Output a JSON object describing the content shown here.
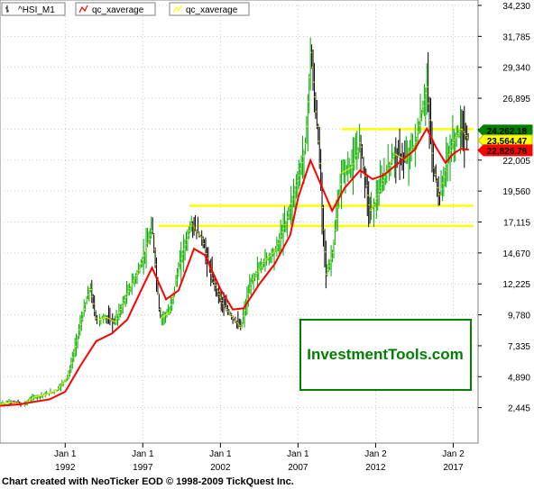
{
  "legend": [
    {
      "label": "^HSI_M1",
      "icon": "bar-series-icon",
      "color": "#000000"
    },
    {
      "label": "qc_xaverage",
      "icon": "line-series-icon",
      "color": "#ff0000"
    },
    {
      "label": "qc_xaverage",
      "icon": "line-series-icon",
      "color": "#ffff00"
    }
  ],
  "footer": "Chart created with NeoTicker EOD © 1998-2009 TickQuest Inc.",
  "watermark": "InvestmentTools.com",
  "colors": {
    "background": "#ffffff",
    "price_bars": "#000000",
    "price_bars_alt": "#ffff00",
    "price_bars_green": "#00aa00",
    "average_line": "#ff0000",
    "level_lines": "#ffff00",
    "watermark_border": "#008000",
    "watermark_text": "#008000"
  },
  "chart_data": {
    "type": "line",
    "title": "",
    "xlabel": "",
    "ylabel": "",
    "x_tick_labels": [
      {
        "month": "Jan 1",
        "year": "1992"
      },
      {
        "month": "Jan 1",
        "year": "1997"
      },
      {
        "month": "Jan 1",
        "year": "2002"
      },
      {
        "month": "Jan 1",
        "year": "2007"
      },
      {
        "month": "Jan 2",
        "year": "2012"
      },
      {
        "month": "Jan 2",
        "year": "2017"
      }
    ],
    "x_tick_dates": [
      1992.0,
      1997.0,
      2002.0,
      2007.0,
      2012.0,
      2017.0
    ],
    "xlim": [
      1987.8,
      2018.6
    ],
    "y_ticks": [
      "2,445",
      "4,890",
      "7,335",
      "9,780",
      "12,225",
      "14,670",
      "17,115",
      "19,560",
      "22,005",
      "24,450",
      "26,895",
      "29,340",
      "31,785",
      "34,230"
    ],
    "ylim": [
      0,
      34230
    ],
    "grid": true,
    "price_labels": [
      {
        "value": 24262.18,
        "text": "24,262.18",
        "color": "#008000"
      },
      {
        "value": 23564.47,
        "text": "23,564.47",
        "color": "#ffff00"
      },
      {
        "value": 22826.76,
        "text": "22,826.76",
        "color": "#ff0000"
      }
    ],
    "series": [
      {
        "name": "^HSI_M1",
        "x": [
          1987.8,
          1988.5,
          1989.3,
          1990.0,
          1990.8,
          1991.5,
          1992.2,
          1993.0,
          1993.6,
          1994.0,
          1994.6,
          1995.2,
          1996.0,
          1996.8,
          1997.6,
          1998.1,
          1998.7,
          1999.3,
          2000.1,
          2000.8,
          2001.5,
          2002.2,
          2002.8,
          2003.3,
          2004.0,
          2004.8,
          2005.6,
          2006.3,
          2007.0,
          2007.5,
          2007.8,
          2008.3,
          2008.8,
          2009.2,
          2009.8,
          2010.5,
          2011.0,
          2011.6,
          2011.9,
          2012.5,
          2013.2,
          2013.9,
          2014.6,
          2015.3,
          2015.7,
          2016.1,
          2016.6,
          2017.0,
          2017.5,
          2018.0
        ],
        "values": [
          2700,
          2900,
          2700,
          3300,
          3500,
          3900,
          5000,
          9200,
          12000,
          9300,
          9600,
          9200,
          11500,
          13500,
          16600,
          9500,
          10000,
          13500,
          17000,
          15800,
          12500,
          10500,
          9500,
          8800,
          12500,
          14000,
          15000,
          17500,
          20500,
          23500,
          30500,
          23500,
          13000,
          14500,
          21000,
          21500,
          23500,
          18000,
          18500,
          20500,
          22500,
          22000,
          23500,
          27800,
          21500,
          19000,
          22000,
          23500,
          24500,
          23564
        ]
      },
      {
        "name": "qc_xaverage",
        "x": [
          1987.8,
          1989.0,
          1990.0,
          1991.0,
          1992.0,
          1993.0,
          1994.0,
          1995.0,
          1996.0,
          1997.0,
          1997.6,
          1998.5,
          1999.3,
          2000.3,
          2001.0,
          2002.0,
          2002.8,
          2003.5,
          2004.5,
          2005.5,
          2006.5,
          2007.0,
          2007.8,
          2008.5,
          2009.2,
          2010.0,
          2011.0,
          2011.8,
          2012.5,
          2013.5,
          2014.5,
          2015.3,
          2015.9,
          2016.5,
          2017.0,
          2017.5,
          2018.0
        ],
        "values": [
          2600,
          2700,
          2900,
          3100,
          3700,
          5800,
          7700,
          8300,
          9400,
          12000,
          13500,
          11000,
          11700,
          15000,
          14500,
          11800,
          10200,
          10300,
          12200,
          13800,
          16100,
          19000,
          22000,
          20000,
          18000,
          19800,
          21200,
          20500,
          20800,
          21800,
          22800,
          24500,
          23000,
          21800,
          22500,
          22900,
          22827
        ]
      }
    ],
    "level_lines": [
      {
        "value": 24450,
        "x_start": 2009.8,
        "x_end": 2018.3
      },
      {
        "value": 18400,
        "x_start": 2000.0,
        "x_end": 2018.3
      },
      {
        "value": 16800,
        "x_start": 1998.0,
        "x_end": 2018.3
      }
    ]
  }
}
